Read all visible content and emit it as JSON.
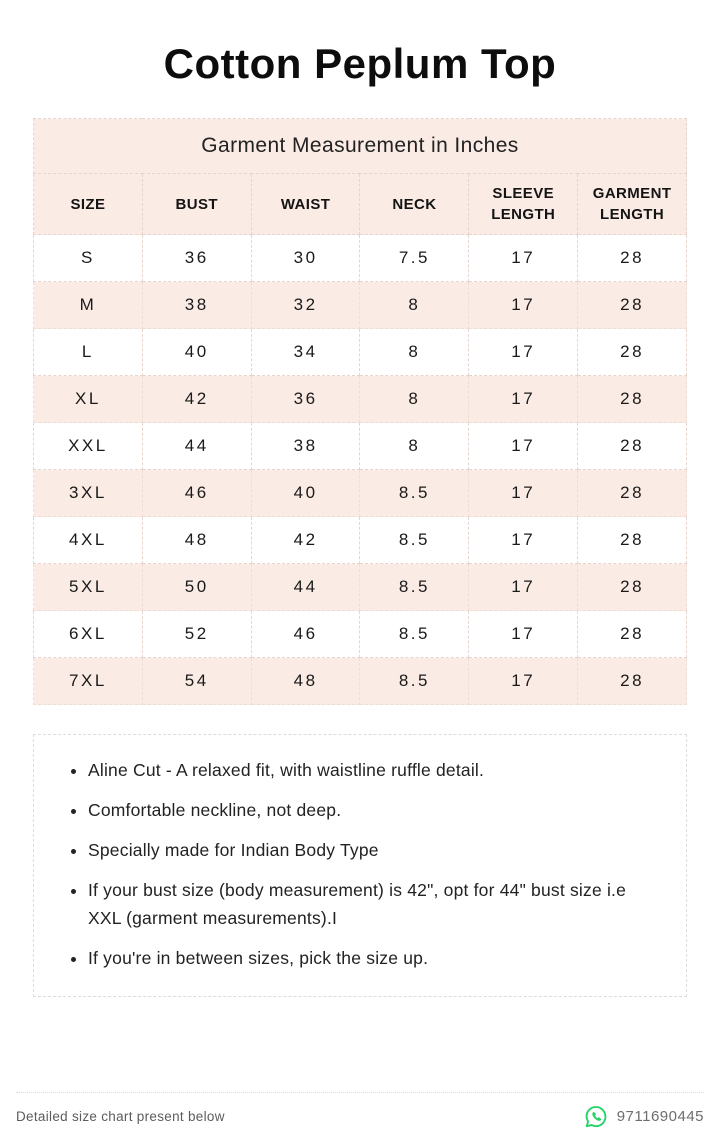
{
  "title": "Cotton Peplum Top",
  "table": {
    "caption": "Garment Measurement in Inches",
    "columns": [
      "SIZE",
      "BUST",
      "WAIST",
      "NECK",
      "SLEEVE LENGTH",
      "GARMENT LENGTH"
    ],
    "rows": [
      [
        "S",
        "36",
        "30",
        "7.5",
        "17",
        "28"
      ],
      [
        "M",
        "38",
        "32",
        "8",
        "17",
        "28"
      ],
      [
        "L",
        "40",
        "34",
        "8",
        "17",
        "28"
      ],
      [
        "XL",
        "42",
        "36",
        "8",
        "17",
        "28"
      ],
      [
        "XXL",
        "44",
        "38",
        "8",
        "17",
        "28"
      ],
      [
        "3XL",
        "46",
        "40",
        "8.5",
        "17",
        "28"
      ],
      [
        "4XL",
        "48",
        "42",
        "8.5",
        "17",
        "28"
      ],
      [
        "5XL",
        "50",
        "44",
        "8.5",
        "17",
        "28"
      ],
      [
        "6XL",
        "52",
        "46",
        "8.5",
        "17",
        "28"
      ],
      [
        "7XL",
        "54",
        "48",
        "8.5",
        "17",
        "28"
      ]
    ]
  },
  "notes": [
    "Aline Cut - A relaxed fit, with waistline ruffle detail.",
    "Comfortable neckline,  not deep.",
    "Specially made for Indian Body Type",
    "If your bust size (body measurement) is 42\", opt for 44\" bust size i.e XXL (garment measurements).I",
    "If you're in between sizes, pick the size up."
  ],
  "footer": {
    "note": "Detailed size chart present below",
    "phone": "9711690445",
    "icon": "whatsapp-icon"
  },
  "colors": {
    "accent_pink": "#fbebe5",
    "table_border": "#e6d5cd",
    "whatsapp_green": "#25D366",
    "text_dark": "#1c1c1c",
    "text_gray": "#5c5c5c"
  }
}
